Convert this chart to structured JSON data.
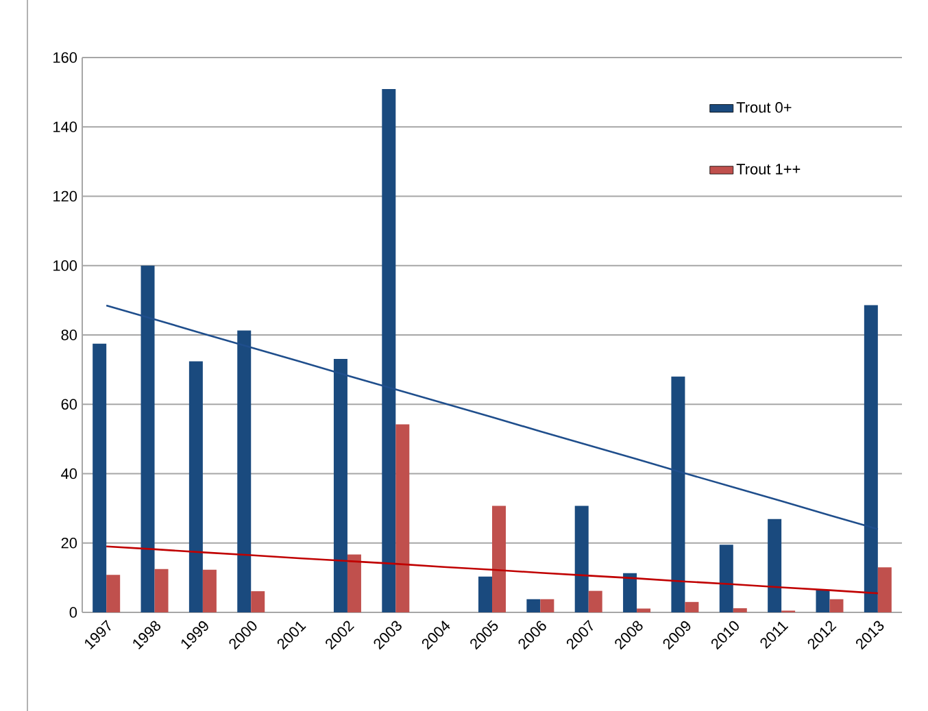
{
  "chart_data": {
    "type": "bar",
    "categories": [
      "1997",
      "1998",
      "1999",
      "2000",
      "2001",
      "2002",
      "2003",
      "2004",
      "2005",
      "2006",
      "2007",
      "2008",
      "2009",
      "2010",
      "2011",
      "2012",
      "2013"
    ],
    "series": [
      {
        "name": "Trout 0+",
        "color": "#1a4a7e",
        "values": [
          77.5,
          100,
          72.4,
          81.3,
          null,
          73.1,
          150.9,
          null,
          10.3,
          3.8,
          30.7,
          11.3,
          68,
          19.5,
          26.9,
          6.5,
          88.6
        ]
      },
      {
        "name": "Trout 1++",
        "color": "#c0504d",
        "values": [
          10.8,
          12.5,
          12.3,
          6.1,
          null,
          16.7,
          54.2,
          null,
          30.7,
          3.8,
          6.2,
          1.1,
          3,
          1.2,
          0.5,
          3.8,
          13
        ]
      },
      {
        "type": "line",
        "color": "#1f4e8c",
        "values": [
          88.5,
          84.5,
          80.4,
          76.4,
          72.4,
          68.3,
          64.3,
          60.3,
          56.3,
          52.2,
          48.2,
          44.2,
          40.1,
          36.1,
          32.1,
          28.0,
          24
        ]
      },
      {
        "type": "line",
        "color": "#c00000",
        "values": [
          19,
          18.2,
          17.3,
          16.5,
          15.6,
          14.8,
          14.0,
          13.1,
          12.3,
          11.4,
          10.6,
          9.8,
          8.9,
          8.1,
          7.2,
          6.4,
          5.5
        ]
      }
    ],
    "ylim": [
      0,
      160
    ],
    "yticks": [
      0,
      20,
      40,
      60,
      80,
      100,
      120,
      140,
      160
    ],
    "grid": "y",
    "legend": "top right"
  }
}
